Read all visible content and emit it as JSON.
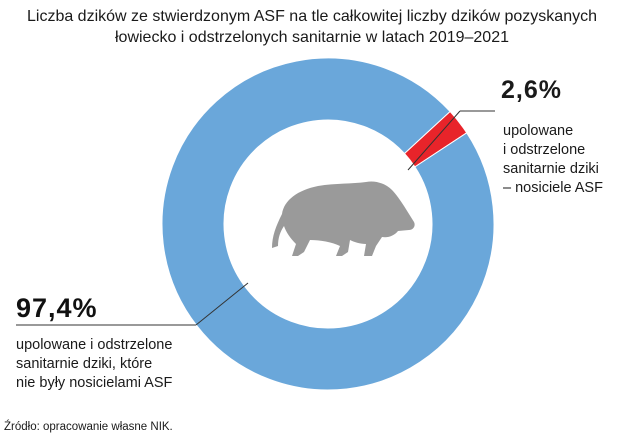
{
  "chart_data": {
    "type": "pie",
    "title_lines": [
      "Liczba dzików ze stwierdzonym ASF na tle całkowitej liczby dzików pozyskanych",
      "łowiecko i odstrzelonych sanitarnie w latach 2019–2021"
    ],
    "slices": [
      {
        "value": 2.6,
        "percent_label": "2,6%",
        "label_lines": [
          "upolowane",
          "i odstrzelone",
          "sanitarnie dziki",
          "– nosiciele ASF"
        ],
        "color": "#e8242a"
      },
      {
        "value": 97.4,
        "percent_label": "97,4%",
        "label_lines": [
          "upolowane i odstrzelone",
          "sanitarnie dziki, które",
          "nie były nosicielami ASF"
        ],
        "color": "#6aa7da"
      }
    ],
    "center_icon": "wild-boar-icon",
    "icon_color": "#9a9a9a"
  },
  "source": "Źródło: opracowanie własne NIK."
}
